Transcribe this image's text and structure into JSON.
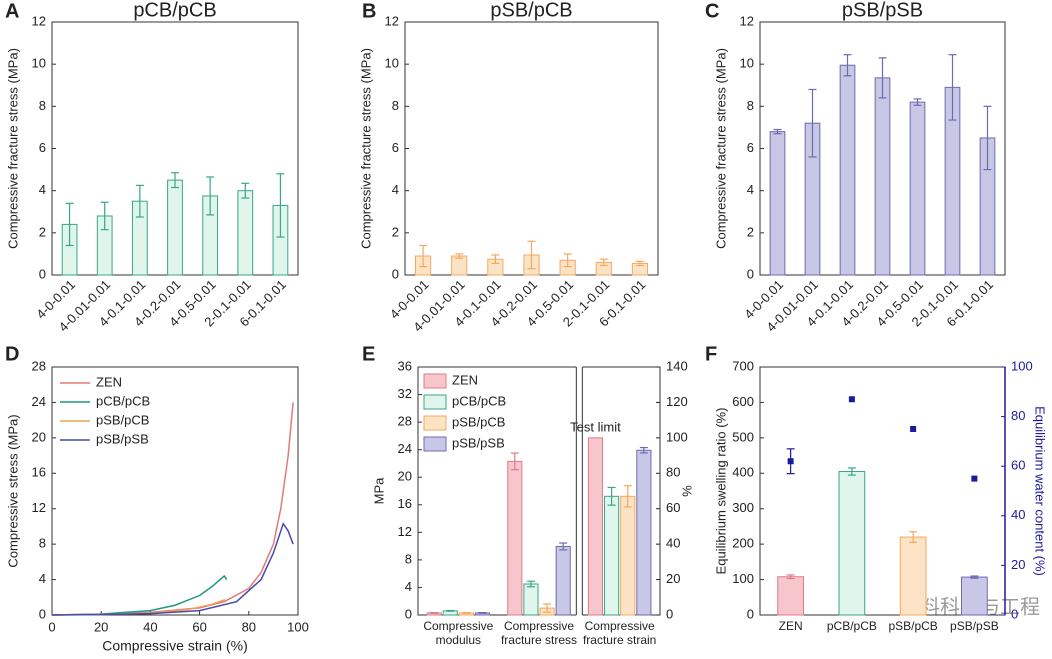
{
  "watermark": "材料科学与工程",
  "chart_data": [
    {
      "type": "bar",
      "panel": "A",
      "title": "pCB/pCB",
      "ylabel": "Compressive fracture stress (MPa)",
      "categories": [
        "4-0-0.01",
        "4-0.01-0.01",
        "4-0.1-0.01",
        "4-0.2-0.01",
        "4-0.5-0.01",
        "2-0.1-0.01",
        "6-0.1-0.01"
      ],
      "values": [
        2.4,
        2.8,
        3.5,
        4.5,
        3.75,
        4.0,
        3.3
      ],
      "errors": [
        1.0,
        0.65,
        0.75,
        0.35,
        0.9,
        0.35,
        1.5
      ],
      "color": "#e0f5ec",
      "edge_color": "#3aa68a",
      "ylim": [
        0,
        12
      ],
      "yticks": [
        0,
        2,
        4,
        6,
        8,
        10,
        12
      ],
      "x_label_rotation": 45
    },
    {
      "type": "bar",
      "panel": "B",
      "title": "pSB/pCB",
      "ylabel": "Compressive fracture stress (MPa)",
      "categories": [
        "4-0-0.01",
        "4-0.01-0.01",
        "4-0.1-0.01",
        "4-0.2-0.01",
        "4-0.5-0.01",
        "2-0.1-0.01",
        "6-0.1-0.01"
      ],
      "values": [
        0.9,
        0.9,
        0.75,
        0.95,
        0.7,
        0.6,
        0.55
      ],
      "errors": [
        0.5,
        0.1,
        0.2,
        0.65,
        0.3,
        0.15,
        0.1
      ],
      "color": "#fde3c6",
      "edge_color": "#f5a860",
      "ylim": [
        0,
        12
      ],
      "yticks": [
        0,
        2,
        4,
        6,
        8,
        10,
        12
      ],
      "x_label_rotation": 45
    },
    {
      "type": "bar",
      "panel": "C",
      "title": "pSB/pSB",
      "ylabel": "Compressive fracture stress (MPa)",
      "categories": [
        "4-0-0.01",
        "4-0.01-0.01",
        "4-0.1-0.01",
        "4-0.2-0.01",
        "4-0.5-0.01",
        "2-0.1-0.01",
        "6-0.1-0.01"
      ],
      "values": [
        6.8,
        7.2,
        9.95,
        9.35,
        8.2,
        8.9,
        6.5
      ],
      "errors": [
        0.1,
        1.6,
        0.5,
        0.95,
        0.15,
        1.55,
        1.5
      ],
      "color": "#c8c8e6",
      "edge_color": "#6b6bb0",
      "ylim": [
        0,
        12
      ],
      "yticks": [
        0,
        2,
        4,
        6,
        8,
        10,
        12
      ],
      "x_label_rotation": 45
    },
    {
      "type": "line",
      "panel": "D",
      "xlabel": "Compressive strain (%)",
      "ylabel": "Compressive stress (MPa)",
      "xlim": [
        0,
        100
      ],
      "xticks": [
        0,
        20,
        40,
        60,
        80,
        100
      ],
      "ylim": [
        0,
        28
      ],
      "yticks": [
        0,
        4,
        8,
        12,
        16,
        20,
        24,
        28
      ],
      "legend": "top-left",
      "series": [
        {
          "name": "ZEN",
          "color": "#e07b7b",
          "x": [
            0,
            20,
            40,
            60,
            70,
            80,
            85,
            90,
            93,
            96,
            98
          ],
          "values": [
            0,
            0.1,
            0.3,
            0.8,
            1.5,
            3,
            4.8,
            8,
            12,
            18,
            24
          ]
        },
        {
          "name": "pCB/pCB",
          "color": "#1f9a7a",
          "x": [
            0,
            20,
            40,
            50,
            60,
            65,
            70,
            71
          ],
          "values": [
            0,
            0.1,
            0.5,
            1.1,
            2.2,
            3.2,
            4.4,
            4.0
          ]
        },
        {
          "name": "pSB/pCB",
          "color": "#f0a050",
          "x": [
            0,
            20,
            40,
            55,
            65,
            70,
            71
          ],
          "values": [
            0,
            0.05,
            0.2,
            0.6,
            1.2,
            1.7,
            1.5
          ]
        },
        {
          "name": "pSB/pSB",
          "color": "#4a4aa8",
          "x": [
            0,
            20,
            40,
            60,
            75,
            85,
            90,
            94,
            96,
            98
          ],
          "values": [
            0,
            0.05,
            0.15,
            0.5,
            1.5,
            4,
            7,
            10.3,
            9.5,
            8
          ]
        }
      ]
    },
    {
      "type": "bar",
      "panel": "E",
      "ylabel": "MPa",
      "y2label": "%",
      "categories": [
        "Compressive modulus",
        "Compressive fracture stress",
        "Compressive fracture strain"
      ],
      "category_axes": [
        "y",
        "y",
        "y2"
      ],
      "annotation": "Test limit",
      "legend": "top-left",
      "ylim": [
        0,
        36
      ],
      "yticks": [
        0,
        4,
        8,
        12,
        16,
        20,
        24,
        28,
        32,
        36
      ],
      "y2lim": [
        0,
        140
      ],
      "y2ticks": [
        0,
        20,
        40,
        60,
        80,
        100,
        120,
        140
      ],
      "series": [
        {
          "name": "ZEN",
          "color": "#f6c6cc",
          "edge_color": "#e07b88",
          "values": [
            0.3,
            22.3,
            100
          ],
          "errors": [
            0.05,
            1.2,
            null
          ]
        },
        {
          "name": "pCB/pCB",
          "color": "#e0f5ec",
          "edge_color": "#3aa68a",
          "values": [
            0.6,
            4.5,
            67
          ],
          "errors": [
            0.05,
            0.4,
            5
          ]
        },
        {
          "name": "pSB/pCB",
          "color": "#fde3c6",
          "edge_color": "#f5a860",
          "values": [
            0.3,
            1.0,
            67
          ],
          "errors": [
            0.05,
            0.6,
            6
          ]
        },
        {
          "name": "pSB/pSB",
          "color": "#c8c8e6",
          "edge_color": "#6b6bb0",
          "values": [
            0.3,
            9.95,
            93
          ],
          "errors": [
            0.05,
            0.5,
            1.5
          ]
        }
      ]
    },
    {
      "type": "bar",
      "panel": "F",
      "ylabel": "Equilibrium swelling ratio (%)",
      "y2label": "Equilibrium water content (%)",
      "categories": [
        "ZEN",
        "pCB/pCB",
        "pSB/pCB",
        "pSB/pSB"
      ],
      "values": [
        108,
        405,
        220,
        107
      ],
      "errors": [
        5,
        10,
        15,
        3
      ],
      "colors": [
        "#f6c6cc",
        "#e0f5ec",
        "#fde3c6",
        "#c8c8e6"
      ],
      "edge_colors": [
        "#e07b88",
        "#3aa68a",
        "#f5a860",
        "#6b6bb0"
      ],
      "y2_values": [
        62,
        87,
        75,
        55
      ],
      "y2_errors": [
        5,
        null,
        null,
        null
      ],
      "y2_color": "#1a1aa0",
      "ylim": [
        0,
        700
      ],
      "yticks": [
        0,
        100,
        200,
        300,
        400,
        500,
        600,
        700
      ],
      "y2lim": [
        0,
        100
      ],
      "y2ticks": [
        0,
        20,
        40,
        60,
        80,
        100
      ]
    }
  ]
}
